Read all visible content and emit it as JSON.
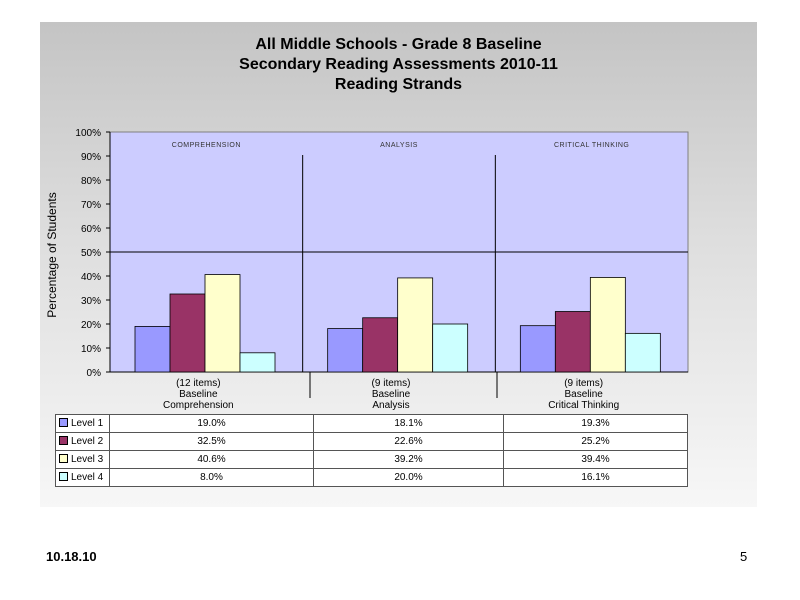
{
  "slide": {
    "date": "10.18.10",
    "page_number": "5"
  },
  "chart_data": {
    "type": "bar",
    "title_lines": [
      "All Middle Schools - Grade 8 Baseline",
      "Secondary Reading Assessments 2010-11",
      "Reading Strands"
    ],
    "ylabel": "Percentage of Students",
    "ylim": [
      0,
      100
    ],
    "yticks": [
      "0%",
      "10%",
      "20%",
      "30%",
      "40%",
      "50%",
      "60%",
      "70%",
      "80%",
      "90%",
      "100%"
    ],
    "panel_labels": [
      "COMPREHENSION",
      "ANALYSIS",
      "CRITICAL THINKING"
    ],
    "categories": [
      [
        "(12 items)",
        "Baseline",
        "Comprehension"
      ],
      [
        "(9 items)",
        "Baseline",
        "Analysis"
      ],
      [
        "(9 items)",
        "Baseline",
        "Critical Thinking"
      ]
    ],
    "series": [
      {
        "name": "Level 1",
        "color": "#9999ff",
        "values": [
          19.0,
          18.1,
          19.3
        ],
        "labels": [
          "19.0%",
          "18.1%",
          "19.3%"
        ]
      },
      {
        "name": "Level 2",
        "color": "#993366",
        "values": [
          32.5,
          22.6,
          25.2
        ],
        "labels": [
          "32.5%",
          "22.6%",
          "25.2%"
        ]
      },
      {
        "name": "Level 3",
        "color": "#ffffcc",
        "values": [
          40.6,
          39.2,
          39.4
        ],
        "labels": [
          "40.6%",
          "39.2%",
          "39.4%"
        ]
      },
      {
        "name": "Level 4",
        "color": "#ccffff",
        "values": [
          8.0,
          20.0,
          16.1
        ],
        "labels": [
          "8.0%",
          "20.0%",
          "16.1%"
        ]
      }
    ],
    "plot_background": "#ccccff",
    "legend": "data-table-below"
  }
}
